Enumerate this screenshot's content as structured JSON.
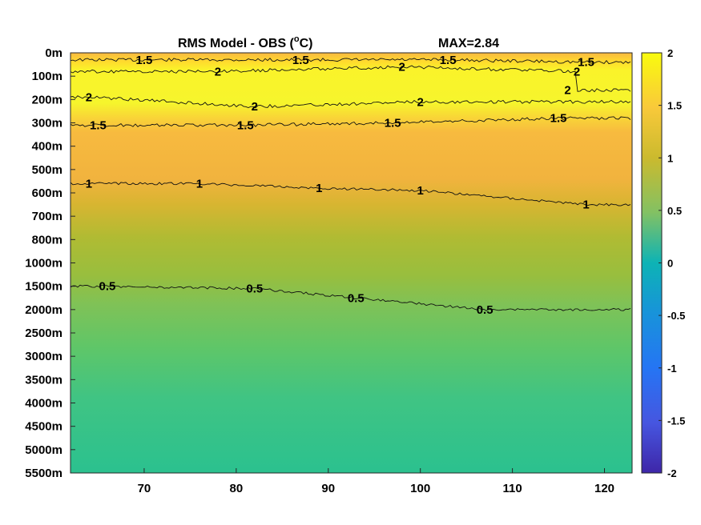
{
  "chart_data": {
    "type": "heatmap",
    "title": "RMS Model - OBS (",
    "title_unit": "C)",
    "title_degree": "o",
    "max_label": "MAX=2.84",
    "x": {
      "ticks": [
        "70",
        "80",
        "90",
        "100",
        "110",
        "120"
      ],
      "tick_values": [
        70,
        80,
        90,
        100,
        110,
        120
      ],
      "range": [
        62,
        123
      ]
    },
    "y": {
      "ticks": [
        "0m",
        "100m",
        "200m",
        "300m",
        "400m",
        "500m",
        "600m",
        "700m",
        "800m",
        "1000m",
        "1500m",
        "2000m",
        "2500m",
        "3000m",
        "3500m",
        "4000m",
        "4500m",
        "5000m",
        "5500m"
      ]
    },
    "colorbar": {
      "ticks": [
        "2",
        "1.5",
        "1",
        "0.5",
        "0",
        "-0.5",
        "-1",
        "-1.5",
        "-2"
      ],
      "range": [
        -2,
        2
      ]
    },
    "depth_profile": {
      "levels": [
        0,
        1,
        2,
        3,
        4,
        5,
        6,
        7,
        8,
        9,
        10,
        11,
        12,
        13,
        14,
        15,
        16,
        17,
        18
      ],
      "values": [
        1.45,
        1.95,
        1.95,
        1.5,
        1.35,
        1.25,
        1.0,
        0.95,
        0.88,
        0.75,
        0.55,
        0.5,
        0.45,
        0.4,
        0.38,
        0.35,
        0.33,
        0.32,
        0.3
      ]
    },
    "contours": [
      {
        "level": "1.5",
        "labels": [
          [
            70,
            0.3
          ],
          [
            87,
            0.3
          ],
          [
            103,
            0.3
          ],
          [
            118,
            0.4
          ]
        ]
      },
      {
        "level": "2",
        "labels": [
          [
            78,
            0.8
          ],
          [
            98,
            0.6
          ],
          [
            117,
            0.8
          ],
          [
            116,
            1.6
          ]
        ]
      },
      {
        "level": "2",
        "labels": [
          [
            64,
            1.9
          ],
          [
            82,
            2.3
          ],
          [
            100,
            2.1
          ]
        ]
      },
      {
        "level": "1.5",
        "labels": [
          [
            65,
            3.1
          ],
          [
            81,
            3.1
          ],
          [
            97,
            3.0
          ],
          [
            115,
            2.8
          ]
        ]
      },
      {
        "level": "1",
        "labels": [
          [
            64,
            5.6
          ],
          [
            76,
            5.6
          ],
          [
            89,
            5.8
          ],
          [
            100,
            5.9
          ],
          [
            118,
            6.5
          ]
        ]
      },
      {
        "level": "0.5",
        "labels": [
          [
            66,
            10.0
          ],
          [
            82,
            10.1
          ],
          [
            93,
            10.5
          ],
          [
            107,
            11.0
          ]
        ]
      }
    ]
  }
}
